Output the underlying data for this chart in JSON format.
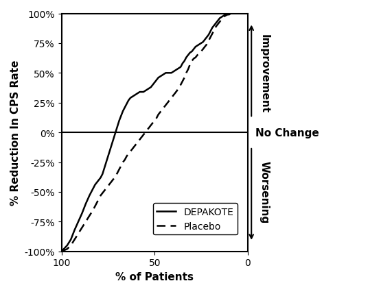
{
  "title": "",
  "xlabel": "% of Patients",
  "ylabel": "% Reduction In CPS Rate",
  "xlim": [
    100,
    0
  ],
  "ylim": [
    -100,
    100
  ],
  "yticks": [
    -100,
    -75,
    -50,
    -25,
    0,
    25,
    50,
    75,
    100
  ],
  "ytick_labels": [
    "-100%",
    "-75%",
    "-50%",
    "-25%",
    "0%",
    "25%",
    "50%",
    "75%",
    "100%"
  ],
  "xticks": [
    100,
    50,
    0
  ],
  "xtick_labels": [
    "100",
    "50",
    "0"
  ],
  "hline_y": 0,
  "no_change_label": "No Change",
  "improvement_label": "Improvement",
  "worsening_label": "Worsening",
  "depakote_label": "DEPAKOTE",
  "placebo_label": "Placebo",
  "depakote_x": [
    100,
    97,
    95,
    93,
    91,
    89,
    87,
    85,
    83,
    82,
    81,
    80,
    79,
    78,
    77,
    76,
    75,
    74,
    73,
    72,
    71,
    70,
    69,
    68,
    67,
    66,
    65,
    64,
    63,
    62,
    61,
    60,
    59,
    58,
    57,
    56,
    55,
    54,
    53,
    52,
    51,
    50,
    49,
    48,
    47,
    46,
    45,
    44,
    43,
    42,
    41,
    40,
    39,
    38,
    37,
    36,
    35,
    34,
    33,
    32,
    31,
    30,
    29,
    28,
    27,
    26,
    25,
    24,
    23,
    22,
    21,
    20,
    19,
    18,
    17,
    16,
    15,
    14,
    13,
    12,
    11,
    10,
    9,
    8,
    7,
    6,
    5,
    4,
    3,
    2,
    1,
    0
  ],
  "depakote_y": [
    -100,
    -95,
    -90,
    -82,
    -75,
    -68,
    -60,
    -53,
    -47,
    -44,
    -42,
    -40,
    -38,
    -35,
    -30,
    -25,
    -20,
    -15,
    -10,
    -5,
    0,
    5,
    10,
    14,
    18,
    21,
    24,
    27,
    29,
    30,
    31,
    32,
    33,
    34,
    34,
    34,
    35,
    36,
    37,
    38,
    40,
    42,
    44,
    46,
    47,
    48,
    49,
    50,
    50,
    50,
    50,
    51,
    52,
    53,
    54,
    55,
    58,
    60,
    63,
    65,
    67,
    68,
    70,
    72,
    73,
    74,
    75,
    76,
    78,
    80,
    82,
    85,
    88,
    90,
    92,
    94,
    96,
    97,
    98,
    99,
    99,
    99,
    100,
    100,
    100,
    100,
    100,
    100,
    100,
    100,
    100,
    100
  ],
  "placebo_x": [
    100,
    97,
    95,
    93,
    91,
    89,
    87,
    85,
    83,
    82,
    81,
    80,
    79,
    78,
    77,
    76,
    75,
    74,
    73,
    72,
    71,
    70,
    69,
    68,
    67,
    66,
    65,
    64,
    63,
    62,
    61,
    60,
    59,
    58,
    57,
    56,
    55,
    54,
    53,
    52,
    51,
    50,
    49,
    48,
    47,
    46,
    45,
    44,
    43,
    42,
    41,
    40,
    39,
    38,
    37,
    36,
    35,
    34,
    33,
    32,
    31,
    30,
    29,
    28,
    27,
    26,
    25,
    24,
    23,
    22,
    21,
    20,
    19,
    18,
    17,
    16,
    15,
    14,
    13,
    12,
    11,
    10,
    9,
    8,
    7,
    6,
    5,
    4,
    3,
    2,
    1,
    0
  ],
  "placebo_y": [
    -100,
    -98,
    -95,
    -90,
    -85,
    -80,
    -75,
    -70,
    -65,
    -62,
    -59,
    -56,
    -53,
    -51,
    -49,
    -47,
    -45,
    -43,
    -41,
    -39,
    -37,
    -34,
    -31,
    -28,
    -25,
    -23,
    -20,
    -18,
    -16,
    -14,
    -12,
    -10,
    -8,
    -6,
    -4,
    -2,
    0,
    2,
    4,
    6,
    8,
    10,
    12,
    15,
    17,
    19,
    21,
    23,
    25,
    27,
    29,
    31,
    33,
    35,
    38,
    40,
    43,
    46,
    50,
    53,
    57,
    60,
    62,
    63,
    65,
    67,
    68,
    70,
    72,
    74,
    77,
    80,
    83,
    86,
    89,
    91,
    93,
    95,
    97,
    98,
    99,
    100,
    100,
    100,
    100,
    100,
    100,
    100,
    100,
    100,
    100,
    100
  ],
  "line_color": "#000000",
  "bg_color": "#ffffff",
  "fontsize_tick": 10,
  "fontsize_label": 11,
  "fontsize_annot": 11,
  "fontsize_legend": 10
}
